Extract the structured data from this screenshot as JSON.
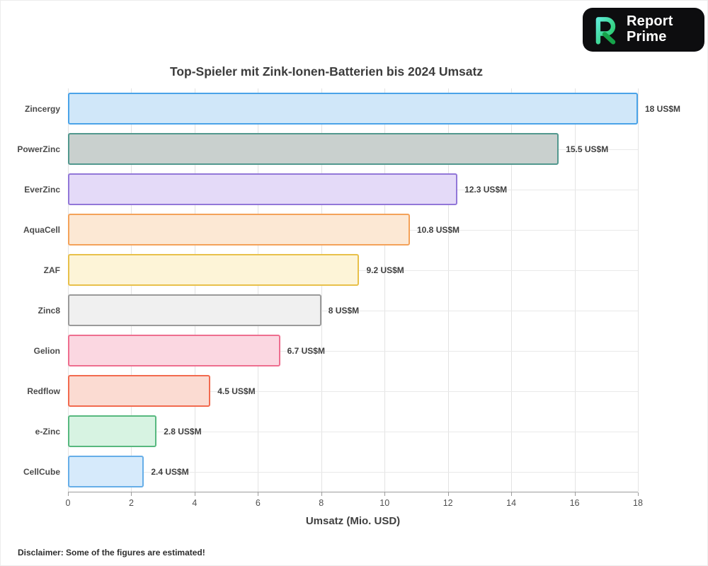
{
  "logo": {
    "line1": "Report",
    "line2": "Prime"
  },
  "chart_data": {
    "type": "bar",
    "orientation": "horizontal",
    "title": "Top-Spieler mit Zink-Ionen-Batterien bis 2024 Umsatz",
    "xlabel": "Umsatz (Mio. USD)",
    "xlim": [
      0,
      18
    ],
    "xticks": [
      0,
      2,
      4,
      6,
      8,
      10,
      12,
      14,
      16,
      18
    ],
    "grid": "both",
    "categories": [
      "Zincergy",
      "PowerZinc",
      "EverZinc",
      "AquaCell",
      "ZAF",
      "Zinc8",
      "Gelion",
      "Redflow",
      "e-Zinc",
      "CellCube"
    ],
    "values": [
      18,
      15.5,
      12.3,
      10.8,
      9.2,
      8,
      6.7,
      4.5,
      2.8,
      2.4
    ],
    "value_labels": [
      "18 US$M",
      "15.5 US$M",
      "12.3 US$M",
      "10.8 US$M",
      "9.2 US$M",
      "8 US$M",
      "6.7 US$M",
      "4.5 US$M",
      "2.8 US$M",
      "2.4 US$M"
    ],
    "bar_colors": [
      {
        "fill": "#d0e7f9",
        "border": "#4aa3e8"
      },
      {
        "fill": "#c9d0ce",
        "border": "#52988e"
      },
      {
        "fill": "#e4daf8",
        "border": "#9277d8"
      },
      {
        "fill": "#fce8d4",
        "border": "#f4a259"
      },
      {
        "fill": "#fdf4d7",
        "border": "#e8c04a"
      },
      {
        "fill": "#f0f0f0",
        "border": "#9a9a9a"
      },
      {
        "fill": "#fbd7e1",
        "border": "#ee6e8f"
      },
      {
        "fill": "#fbdbd2",
        "border": "#f26a4f"
      },
      {
        "fill": "#d7f3e2",
        "border": "#57b87f"
      },
      {
        "fill": "#d6eafb",
        "border": "#66aee8"
      }
    ]
  },
  "disclaimer": "Disclaimer: Some of the figures are estimated!"
}
